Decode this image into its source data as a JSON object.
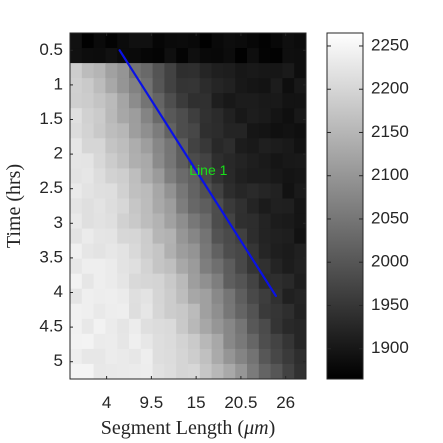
{
  "chart_data": {
    "type": "heatmap",
    "title": "",
    "xlabel": "Segment Length (",
    "xlabel_unit": "μm",
    "xlabel_close": ")",
    "ylabel": "Time (hrs)",
    "x_ticks": [
      "4",
      "9.5",
      "15",
      "20.5",
      "26"
    ],
    "x_tick_values": [
      4,
      9.5,
      15,
      20.5,
      26
    ],
    "y_ticks": [
      "0.5",
      "1",
      "1.5",
      "2",
      "2.5",
      "3",
      "3.5",
      "4",
      "4.5",
      "5"
    ],
    "y_tick_values": [
      0.5,
      1,
      1.5,
      2,
      2.5,
      3,
      3.5,
      4,
      4.5,
      5
    ],
    "xlim": [
      -0.5,
      28.5
    ],
    "ylim": [
      0.25,
      5.25
    ],
    "colormap": "gray",
    "colorbar": {
      "range": [
        1865,
        2265
      ],
      "ticks": [
        "1900",
        "1950",
        "2000",
        "2050",
        "2100",
        "2150",
        "2200",
        "2250"
      ],
      "tick_values": [
        1900,
        1950,
        2000,
        2050,
        2100,
        2150,
        2200,
        2250
      ]
    },
    "grid": {
      "cols": 20,
      "rows": 23,
      "x_start": -0.5,
      "x_end": 28.5,
      "y_start": 0.25,
      "y_end": 5.25
    },
    "intensity_model": {
      "front_x_at_t0": 4.5,
      "front_speed_um_per_hr": 3.3,
      "front_width_um": 3.6,
      "bright_level": 2235,
      "dark_level": 1895,
      "top_dark_until_hr": 0.6,
      "top_dark_level": 1880,
      "bottom_boost_um_per_hr": 0.6
    },
    "annotation": {
      "label": "Line 1",
      "label_color": "#18e018",
      "label_at": [
        16.5,
        2.25
      ],
      "line_color": "#0a12e6",
      "start": [
        5.6,
        0.5
      ],
      "end": [
        24.8,
        4.05
      ]
    }
  }
}
